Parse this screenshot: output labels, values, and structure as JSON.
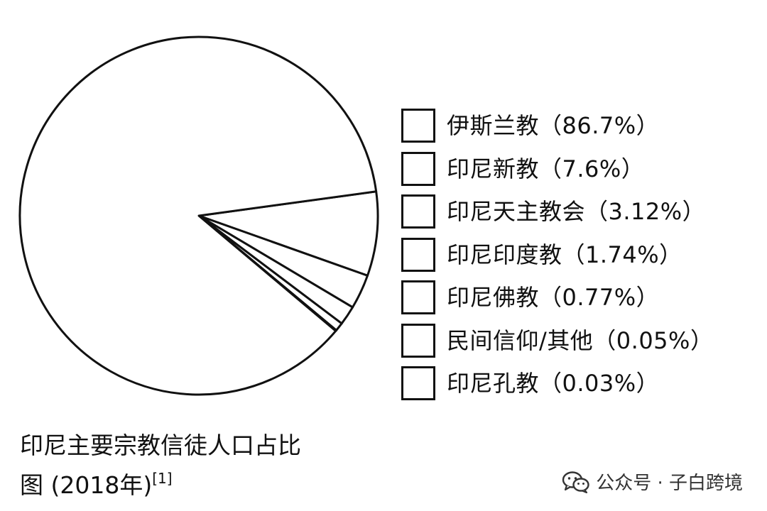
{
  "chart_data": {
    "type": "pie",
    "title": "",
    "colors": {
      "stroke": "#111111",
      "fill": "#ffffff"
    },
    "slices": [
      {
        "label": "伊斯兰教（86.7%）",
        "value": 86.7
      },
      {
        "label": "印尼新教（7.6%）",
        "value": 7.6
      },
      {
        "label": "印尼天主教会（3.12%）",
        "value": 3.12
      },
      {
        "label": "印尼印度教（1.74%）",
        "value": 1.74
      },
      {
        "label": "印尼佛教（0.77%）",
        "value": 0.77
      },
      {
        "label": "民间信仰/其他（0.05%）",
        "value": 0.05
      },
      {
        "label": "印尼孔教（0.03%）",
        "value": 0.03
      }
    ],
    "legend_position": "right"
  },
  "caption": {
    "line1": "印尼主要宗教信徒人口占比",
    "line2": "图 (2018年)",
    "ref": "[1]"
  },
  "watermark": {
    "icon": "wechat-icon",
    "text": "公众号 · 子白跨境"
  }
}
